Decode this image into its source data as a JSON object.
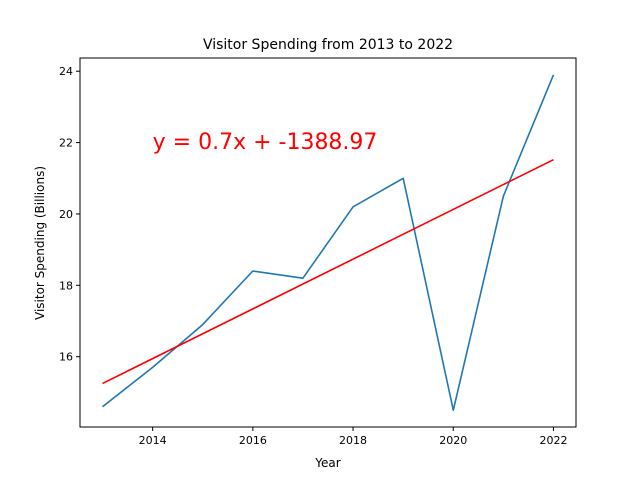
{
  "chart_data": {
    "type": "line",
    "title": "Visitor Spending from 2013 to 2022",
    "xlabel": "Year",
    "ylabel": "Visitor Spending (Billions)",
    "xlim": [
      2012.55,
      2022.45
    ],
    "ylim": [
      14.03,
      24.37
    ],
    "xticks": [
      2014,
      2016,
      2018,
      2020,
      2022
    ],
    "yticks": [
      16,
      18,
      20,
      22,
      24
    ],
    "grid": false,
    "series": [
      {
        "x": [
          2013,
          2014,
          2015,
          2016,
          2017,
          2018,
          2019,
          2020,
          2021,
          2022
        ],
        "y": [
          14.6,
          15.7,
          16.9,
          18.4,
          18.2,
          20.2,
          21.0,
          14.5,
          20.5,
          23.9
        ],
        "color": "#1f77b4"
      }
    ],
    "trendline": {
      "x": [
        2013,
        2022
      ],
      "y": [
        15.25,
        21.52
      ],
      "color": "#ff0000"
    },
    "annotation": {
      "text": "y = 0.7x + -1388.97",
      "x": 2014,
      "y": 22.05,
      "color": "#ff0000"
    }
  }
}
